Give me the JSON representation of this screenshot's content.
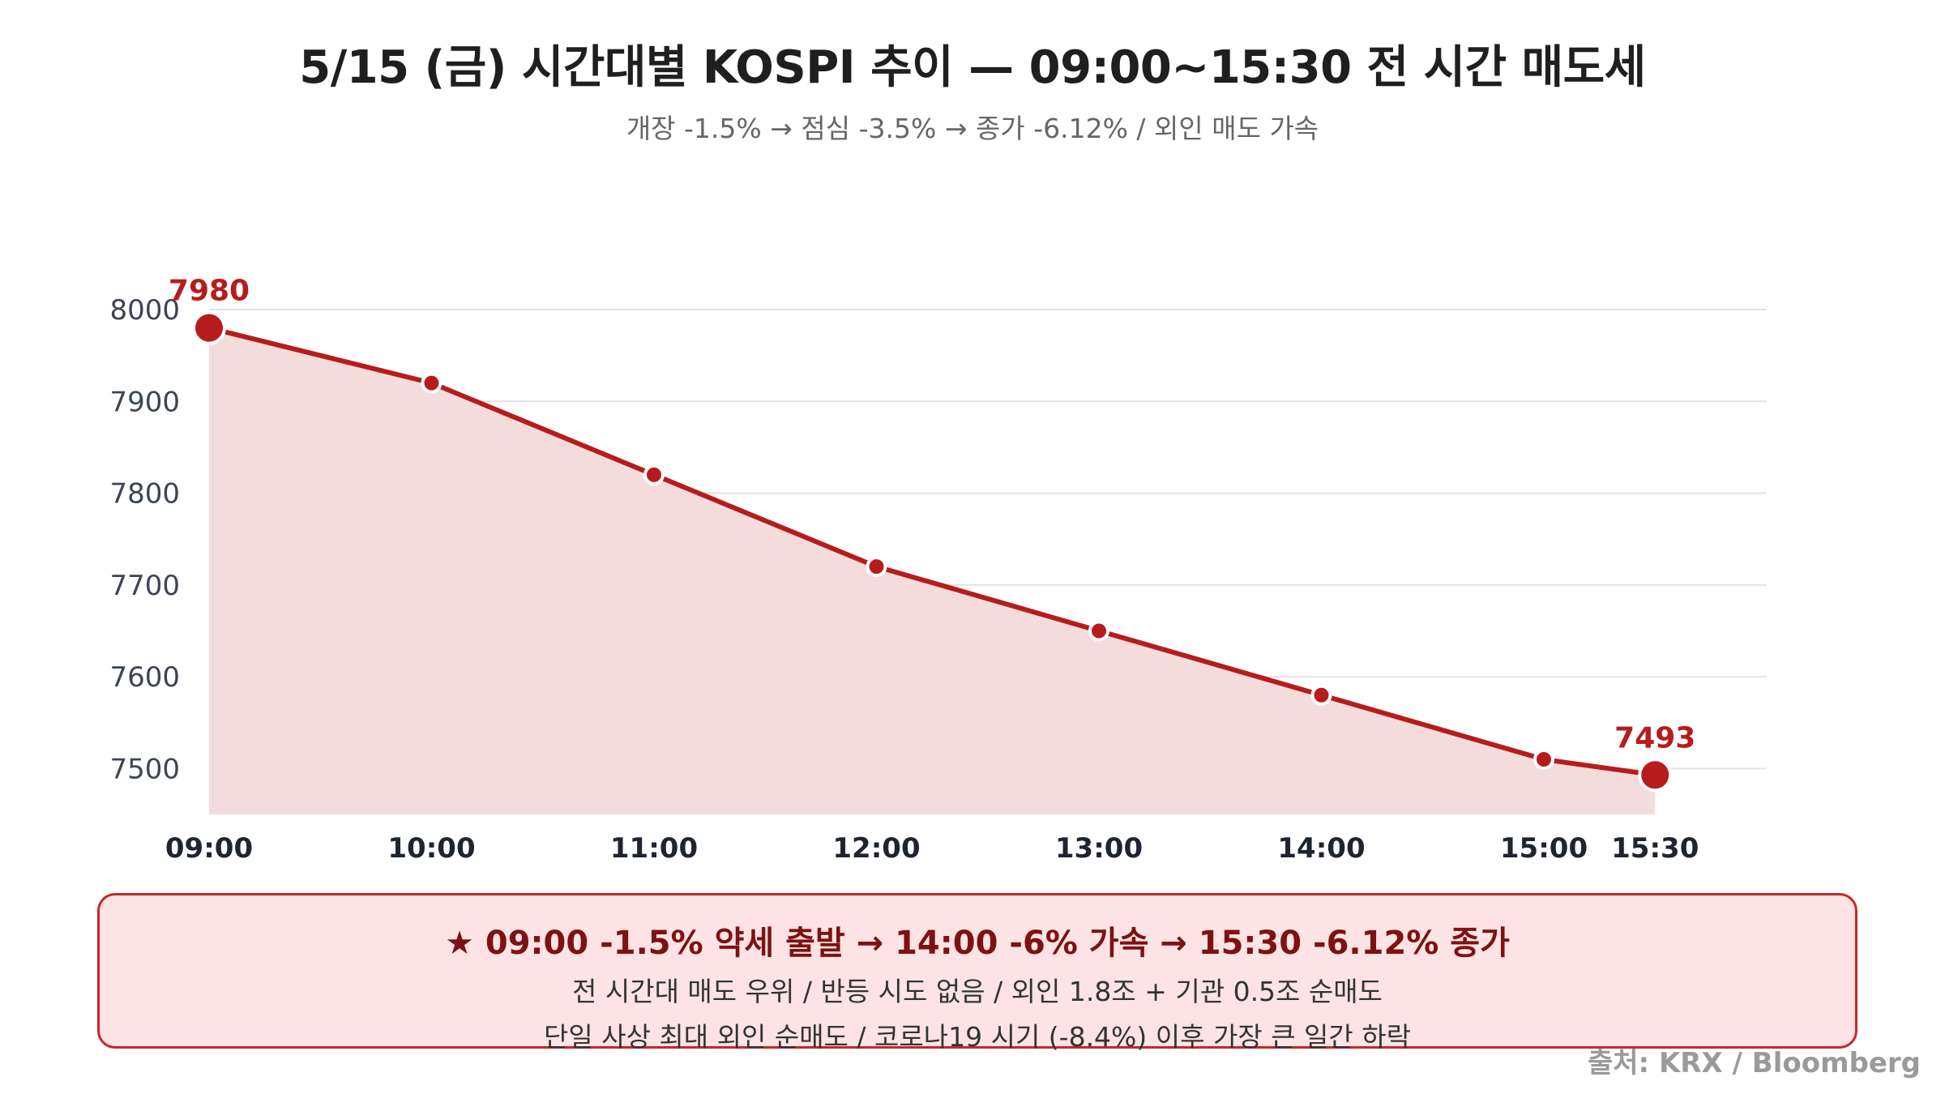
{
  "title": "5/15 (금) 시간대별 KOSPI 추이 — 09:00~15:30 전 시간 매도세",
  "subtitle": "개장 -1.5% → 점심 -3.5% → 종가 -6.12% / 외인 매도 가속",
  "colors": {
    "line": "#b71c1c",
    "area": "#f4dcdd",
    "grid": "#e2e2e2",
    "callout_bg": "#fde3e4",
    "callout_border": "#c62828"
  },
  "chart_data": {
    "type": "area",
    "x": [
      "09:00",
      "10:00",
      "11:00",
      "12:00",
      "13:00",
      "14:00",
      "15:00",
      "15:30"
    ],
    "series": [
      {
        "values": [
          7980,
          7920,
          7820,
          7720,
          7650,
          7580,
          7510,
          7493
        ]
      }
    ],
    "y_ticks": [
      8000,
      7900,
      7800,
      7700,
      7600,
      7500
    ],
    "ylim": [
      7450,
      8000
    ],
    "grid": true,
    "data_labels": [
      {
        "index": 0,
        "text": "7980"
      },
      {
        "index": 7,
        "text": "7493"
      }
    ]
  },
  "callout": {
    "headline": "★ 09:00 -1.5% 약세 출발 → 14:00 -6% 가속 → 15:30 -6.12% 종가",
    "line1": "전 시간대 매도 우위 / 반등 시도 없음 / 외인 1.8조 + 기관 0.5조 순매도",
    "line2": "단일 사상 최대 외인 순매도 / 코로나19 시기 (-8.4%) 이후 가장 큰 일간 하락"
  },
  "source": "출처: KRX / Bloomberg"
}
